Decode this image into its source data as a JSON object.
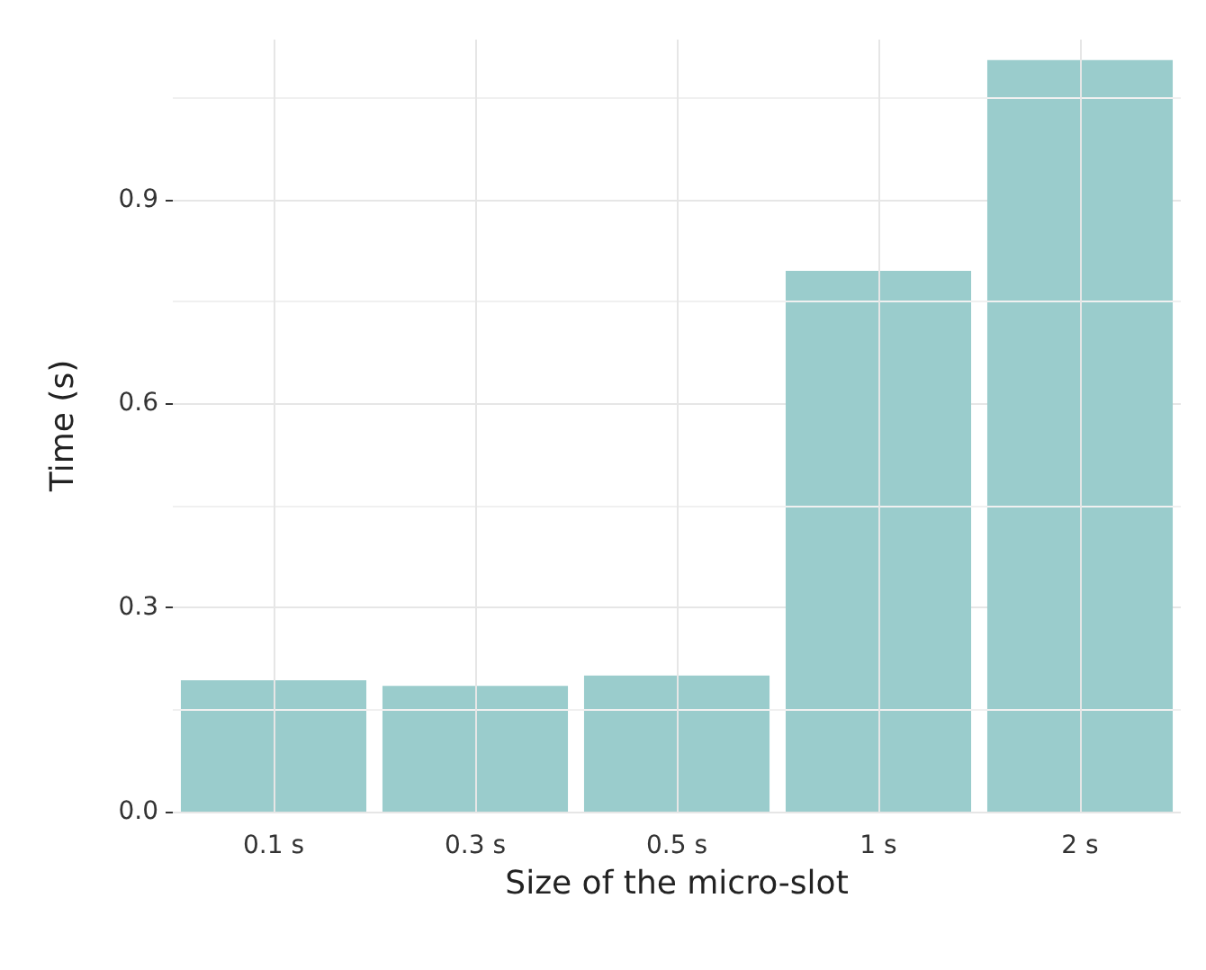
{
  "chart_data": {
    "type": "bar",
    "xlabel": "Size of the micro-slot",
    "ylabel": "Time (s)",
    "categories": [
      "0.1 s",
      "0.3 s",
      "0.5 s",
      "1 s",
      "2 s"
    ],
    "values": [
      0.193,
      0.185,
      0.2,
      0.795,
      1.105
    ],
    "color": "#9acccc",
    "ylim": [
      0,
      1.135
    ],
    "yticks": [
      {
        "value": 0,
        "label": "0.0"
      },
      {
        "value": 0.15,
        "label": null
      },
      0.3,
      {
        "value": 0.45,
        "label": null
      },
      0.6,
      {
        "value": 0.75,
        "label": null
      },
      0.9,
      {
        "value": 1.05,
        "label": null
      }
    ],
    "grid": true
  }
}
